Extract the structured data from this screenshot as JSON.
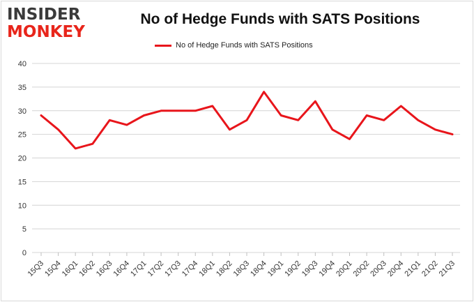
{
  "logo": {
    "line1": "INSIDER",
    "line2": "MONKEY"
  },
  "chart_data": {
    "type": "line",
    "title": "No of Hedge Funds with SATS Positions",
    "xlabel": "",
    "ylabel": "",
    "categories": [
      "15Q3",
      "15Q4",
      "16Q1",
      "16Q2",
      "16Q3",
      "16Q4",
      "17Q1",
      "17Q2",
      "17Q3",
      "17Q4",
      "18Q1",
      "18Q2",
      "18Q3",
      "18Q4",
      "19Q1",
      "19Q2",
      "19Q3",
      "19Q4",
      "20Q1",
      "20Q2",
      "20Q3",
      "20Q4",
      "21Q1",
      "21Q2",
      "21Q3"
    ],
    "series": [
      {
        "name": "No of Hedge Funds with SATS Positions",
        "color": "#e8151b",
        "values": [
          29,
          26,
          22,
          23,
          28,
          27,
          29,
          30,
          30,
          30,
          31,
          26,
          28,
          34,
          29,
          28,
          32,
          26,
          24,
          29,
          28,
          31,
          28,
          26,
          25
        ]
      }
    ],
    "ylim": [
      0,
      40
    ],
    "yticks": [
      0,
      5,
      10,
      15,
      20,
      25,
      30,
      35,
      40
    ],
    "grid": true,
    "legend": "top-center"
  }
}
